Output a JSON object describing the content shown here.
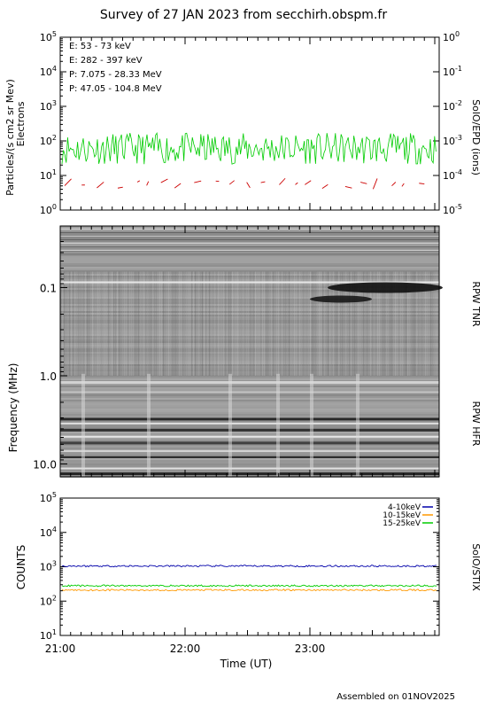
{
  "title": "Survey of 27 JAN 2023 from secchirh.obspm.fr",
  "footer": "Assembled on 01NOV2025",
  "colors": {
    "e_low": "#00cc00",
    "e_high": "#cc0000",
    "p_low": "#000000",
    "p_high": "#0000cc",
    "stix_4_10": "#0000aa",
    "stix_10_15": "#ff9900",
    "stix_15_25": "#00cc00"
  },
  "chart_data": [
    {
      "type": "line",
      "ylabel_left": "Particles/(s cm2 sr Mev)",
      "ylabel_left2": "Electrons",
      "ylabel_right": "SolO/EPD (ions)",
      "yscale": "log",
      "ylim": [
        1,
        100000
      ],
      "ylim_right": [
        1e-05,
        1000000000
      ],
      "y_ticks": [
        "10^0",
        "10^1",
        "10^2",
        "10^3",
        "10^4",
        "10^5"
      ],
      "y_ticks_right": [
        "10^-5",
        "10^-4",
        "10^-3",
        "10^-2",
        "10^-1",
        "10^0"
      ],
      "legend": [
        "E: 53 - 73 keV",
        "E: 282 - 397 keV",
        "P: 7.075 - 28.33 MeV",
        "P: 47.05 - 104.8 MeV"
      ],
      "series": [
        {
          "name": "E: 53 - 73 keV",
          "approx_level": 60,
          "range": [
            20,
            180
          ]
        },
        {
          "name": "E: 282 - 397 keV",
          "approx_level": 5,
          "range": [
            4,
            9
          ]
        }
      ]
    },
    {
      "type": "heatmap",
      "ylabel": "Frequency (MHz)",
      "yscale": "log",
      "ylim": [
        0.02,
        14
      ],
      "y_ticks": [
        "0.1",
        "1.0",
        "10.0"
      ],
      "label_tnr": "RPW TNR",
      "label_hfr": "RPW HFR"
    },
    {
      "type": "line",
      "ylabel": "COUNTS",
      "ylabel_right": "SolO/STIX",
      "yscale": "log",
      "ylim": [
        10,
        100000
      ],
      "y_ticks": [
        "10^1",
        "10^2",
        "10^3",
        "10^4",
        "10^5"
      ],
      "xlabel": "Time (UT)",
      "x_ticks": [
        "21:00",
        "22:00",
        "23:00"
      ],
      "legend": [
        "4-10keV",
        "10-15keV",
        "15-25keV"
      ],
      "series": [
        {
          "name": "4-10keV",
          "approx_level": 1050
        },
        {
          "name": "10-15keV",
          "approx_level": 210
        },
        {
          "name": "15-25keV",
          "approx_level": 280
        }
      ]
    }
  ]
}
